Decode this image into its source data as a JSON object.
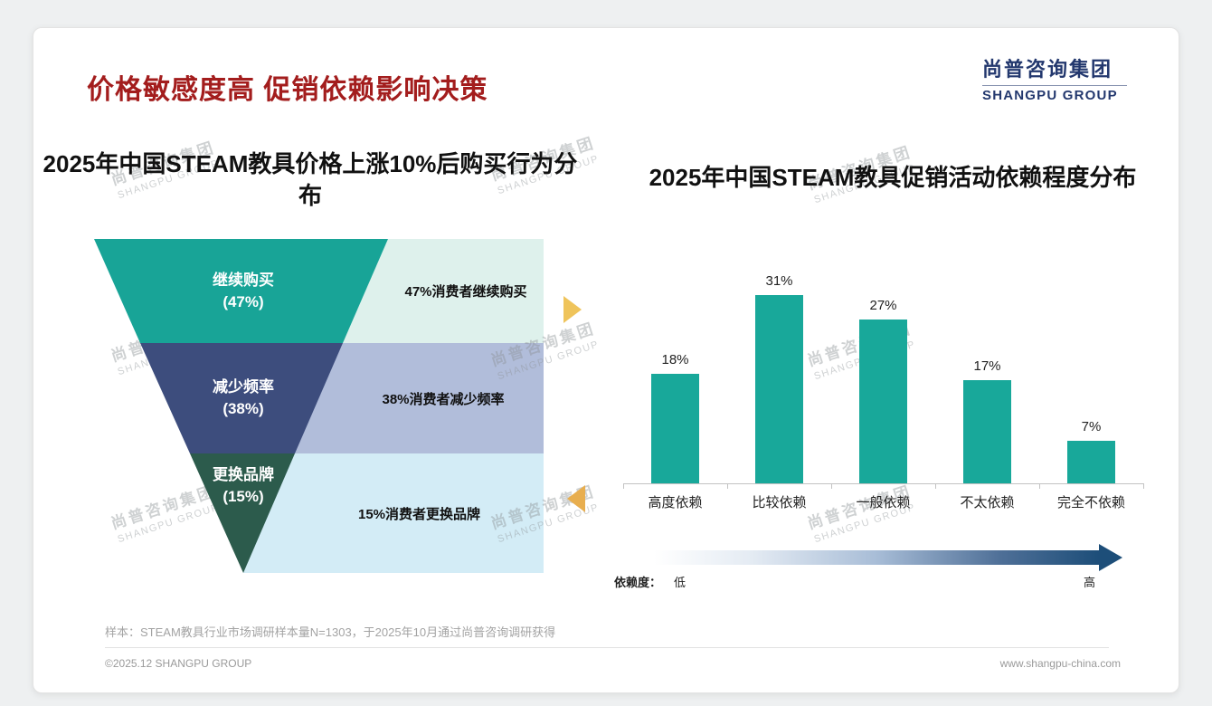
{
  "slide": {
    "title": "价格敏感度高 促销依赖影响决策",
    "logo": {
      "cn": "尚普咨询集团",
      "en": "SHANGPU GROUP"
    },
    "watermark": {
      "cn": "尚普咨询集团",
      "en": "SHANGPU GROUP"
    },
    "sample_note": "样本：STEAM教具行业市场调研样本量N=1303，于2025年10月通过尚普咨询调研获得",
    "copyright": "©2025.12 SHANGPU GROUP",
    "website": "www.shangpu-china.com"
  },
  "colors": {
    "title_red": "#a31d1d",
    "brand_navy": "#23386e",
    "teal": "#18a497",
    "funnel_blue": "#3d4d7d",
    "funnel_green": "#2c5b4c",
    "pale_mint": "#def1ec",
    "pale_periwinkle": "#b1bdda",
    "pale_cyan": "#d3ecf6",
    "arrow_gold": "#efc45b",
    "gradient_navy": "#1d4e79"
  },
  "chart_data": [
    {
      "type": "funnel",
      "title": "2025年中国STEAM教具价格上涨10%后购买行为分布",
      "stages": [
        {
          "label": "继续购买",
          "pct": "(47%)",
          "value": 47,
          "annotation": "47%消费者继续购买"
        },
        {
          "label": "减少频率",
          "pct": "(38%)",
          "value": 38,
          "annotation": "38%消费者减少频率"
        },
        {
          "label": "更换品牌",
          "pct": "(15%)",
          "value": 15,
          "annotation": "15%消费者更换品牌"
        }
      ]
    },
    {
      "type": "bar",
      "title": "2025年中国STEAM教具促销活动依赖程度分布",
      "categories": [
        "高度依赖",
        "比较依赖",
        "一般依赖",
        "不太依赖",
        "完全不依赖"
      ],
      "values": [
        18,
        31,
        27,
        17,
        7
      ],
      "value_labels": [
        "18%",
        "31%",
        "27%",
        "17%",
        "7%"
      ],
      "ylim": [
        0,
        35
      ],
      "grid": false,
      "legend": "none",
      "axis_note": {
        "label": "依赖度：",
        "low": "低",
        "high": "高"
      }
    }
  ]
}
